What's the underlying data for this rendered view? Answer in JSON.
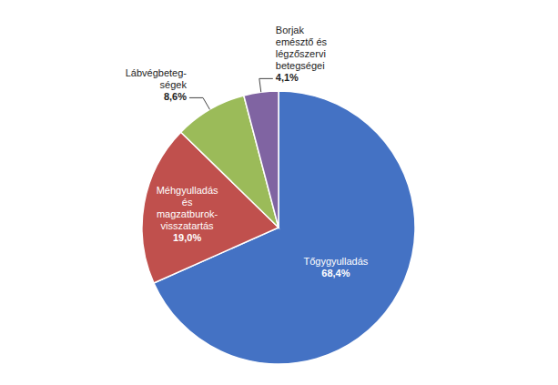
{
  "chart_data": {
    "type": "pie",
    "categories": [
      "Tőgygyulladás",
      "Méhgyulladás\nés\nmagzatburok-\nvisszatartás",
      "Lábvégbeteg-\nségek",
      "Borjak\nemésztő és\nlégzőszervi\nbetegségei"
    ],
    "values": [
      68.4,
      19.0,
      8.6,
      4.1
    ],
    "value_labels": [
      "68,4%",
      "19,0%",
      "8,6%",
      "4,1%"
    ],
    "colors": [
      "#4472C4",
      "#C0504D",
      "#9BBB59",
      "#8064A2"
    ],
    "data_labels": true
  }
}
